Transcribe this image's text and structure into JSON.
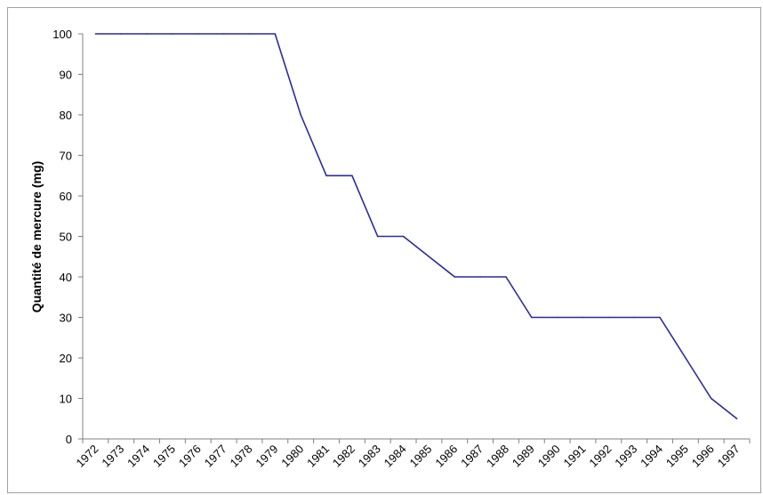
{
  "chart_data": {
    "type": "line",
    "title": "",
    "xlabel": "",
    "ylabel": "Quantité de mercure (mg)",
    "ylim": [
      0,
      100
    ],
    "yticks": [
      0,
      10,
      20,
      30,
      40,
      50,
      60,
      70,
      80,
      90,
      100
    ],
    "categories": [
      "1972",
      "1973",
      "1974",
      "1975",
      "1976",
      "1977",
      "1978",
      "1979",
      "1980",
      "1981",
      "1982",
      "1983",
      "1984",
      "1985",
      "1986",
      "1987",
      "1988",
      "1989",
      "1990",
      "1991",
      "1992",
      "1993",
      "1994",
      "1995",
      "1996",
      "1997"
    ],
    "series": [
      {
        "values": [
          100,
          100,
          100,
          100,
          100,
          100,
          100,
          100,
          80,
          65,
          65,
          50,
          50,
          45,
          40,
          40,
          40,
          30,
          30,
          30,
          30,
          30,
          30,
          20,
          10,
          5
        ],
        "color": "#2a2aa0"
      }
    ],
    "grid": false,
    "legend": "none",
    "axis_color": "#808080"
  }
}
